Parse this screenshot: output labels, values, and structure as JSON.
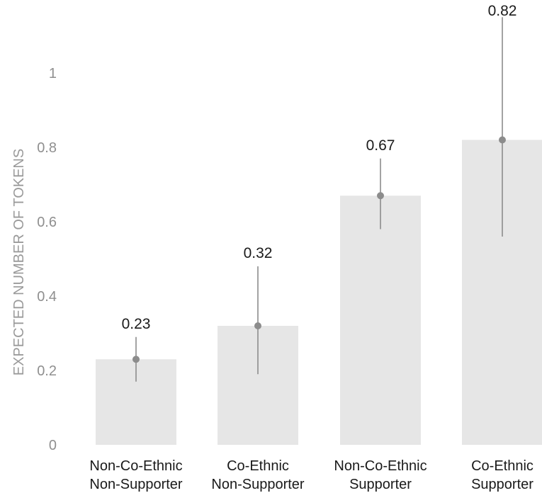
{
  "chart_data": {
    "type": "bar",
    "title": "",
    "xlabel": "",
    "ylabel": "EXPECTED NUMBER OF TOKENS",
    "categories": [
      [
        "Non-Co-Ethnic",
        "Non-Supporter"
      ],
      [
        "Co-Ethnic",
        "Non-Supporter"
      ],
      [
        "Non-Co-Ethnic",
        "Supporter"
      ],
      [
        "Co-Ethnic",
        "Supporter"
      ]
    ],
    "values": [
      0.23,
      0.32,
      0.67,
      0.82
    ],
    "data_labels": [
      "0.23",
      "0.32",
      "0.67",
      "0.82"
    ],
    "error_bars": [
      {
        "low": 0.17,
        "high": 0.29
      },
      {
        "low": 0.19,
        "high": 0.48
      },
      {
        "low": 0.58,
        "high": 0.77
      },
      {
        "low": 0.56,
        "high": 1.15
      }
    ],
    "ylim": [
      0,
      1.18
    ],
    "yticks": [
      0,
      0.2,
      0.4,
      0.6,
      0.8,
      1
    ],
    "ytick_labels": [
      "0",
      "0.2",
      "0.4",
      "0.6",
      "0.8",
      "1"
    ],
    "grid": false,
    "legend": "none",
    "colors": {
      "bar": "#e6e6e6",
      "error_bar": "#8c8c8c",
      "point": "#8c8c8c"
    }
  }
}
